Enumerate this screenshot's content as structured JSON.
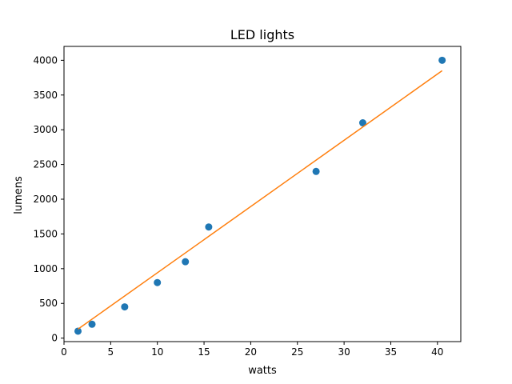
{
  "chart_data": {
    "type": "scatter",
    "title": "LED lights",
    "xlabel": "watts",
    "ylabel": "lumens",
    "xlim": [
      0,
      42.5
    ],
    "ylim": [
      -50,
      4200
    ],
    "xticks": [
      0,
      5,
      10,
      15,
      20,
      25,
      30,
      35,
      40
    ],
    "yticks": [
      0,
      500,
      1000,
      1500,
      2000,
      2500,
      3000,
      3500,
      4000
    ],
    "grid": false,
    "series": [
      {
        "type": "scatter",
        "color": "#1f77b4",
        "x": [
          1.5,
          3,
          6.5,
          10,
          13,
          15.5,
          27,
          32,
          40.5
        ],
        "y": [
          100,
          200,
          450,
          800,
          1100,
          1600,
          2400,
          3100,
          4000
        ]
      },
      {
        "type": "line",
        "color": "#ff7f0e",
        "x": [
          1.5,
          40.5
        ],
        "y": [
          130,
          3850
        ]
      }
    ]
  }
}
